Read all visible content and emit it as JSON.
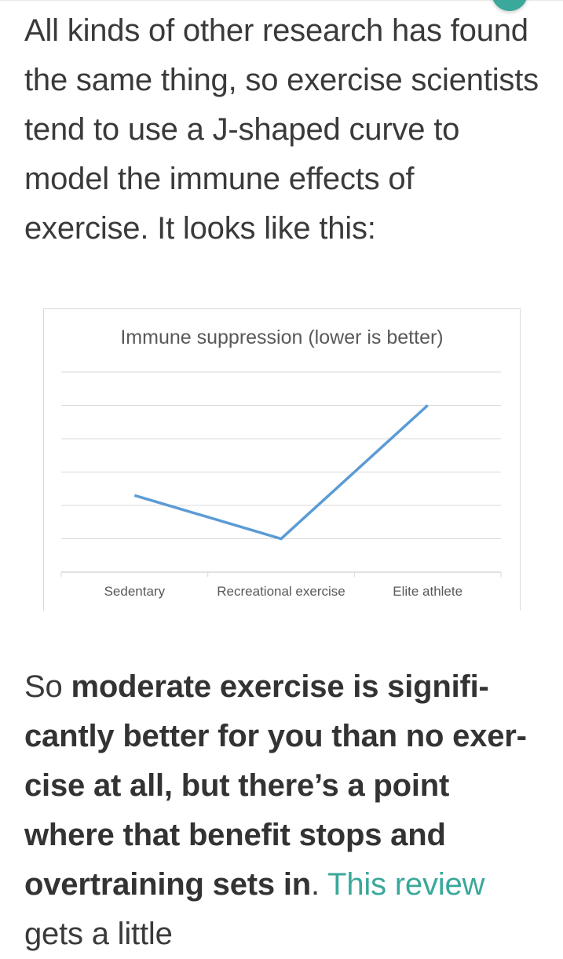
{
  "article": {
    "paragraph1": "All kinds of other research has found the same thing, so exercise scientists tend to use a J-shaped curve to model the immune effects of exercise. It looks like this:",
    "paragraph2": {
      "lead": "So ",
      "bold": "moderate exercise is signifi-cantly better for you than no exer-cise at all, but there’s a point where that benefit stops and overtraining sets in",
      "after_bold": ". ",
      "link_text": "This review",
      "tail": " gets a little"
    }
  },
  "colors": {
    "accent": "#3aa89a",
    "line": "#5b9bd5",
    "grid": "#d9d9d9"
  },
  "chart_data": {
    "type": "line",
    "title": "Immune suppression (lower is better)",
    "categories": [
      "Sedentary",
      "Recreational exercise",
      "Elite athlete"
    ],
    "series": [
      {
        "values": [
          2.3,
          1.0,
          5.0
        ]
      }
    ],
    "ylim": [
      0,
      6
    ],
    "grid": true,
    "legend": "none",
    "xlabel": "",
    "ylabel": ""
  }
}
